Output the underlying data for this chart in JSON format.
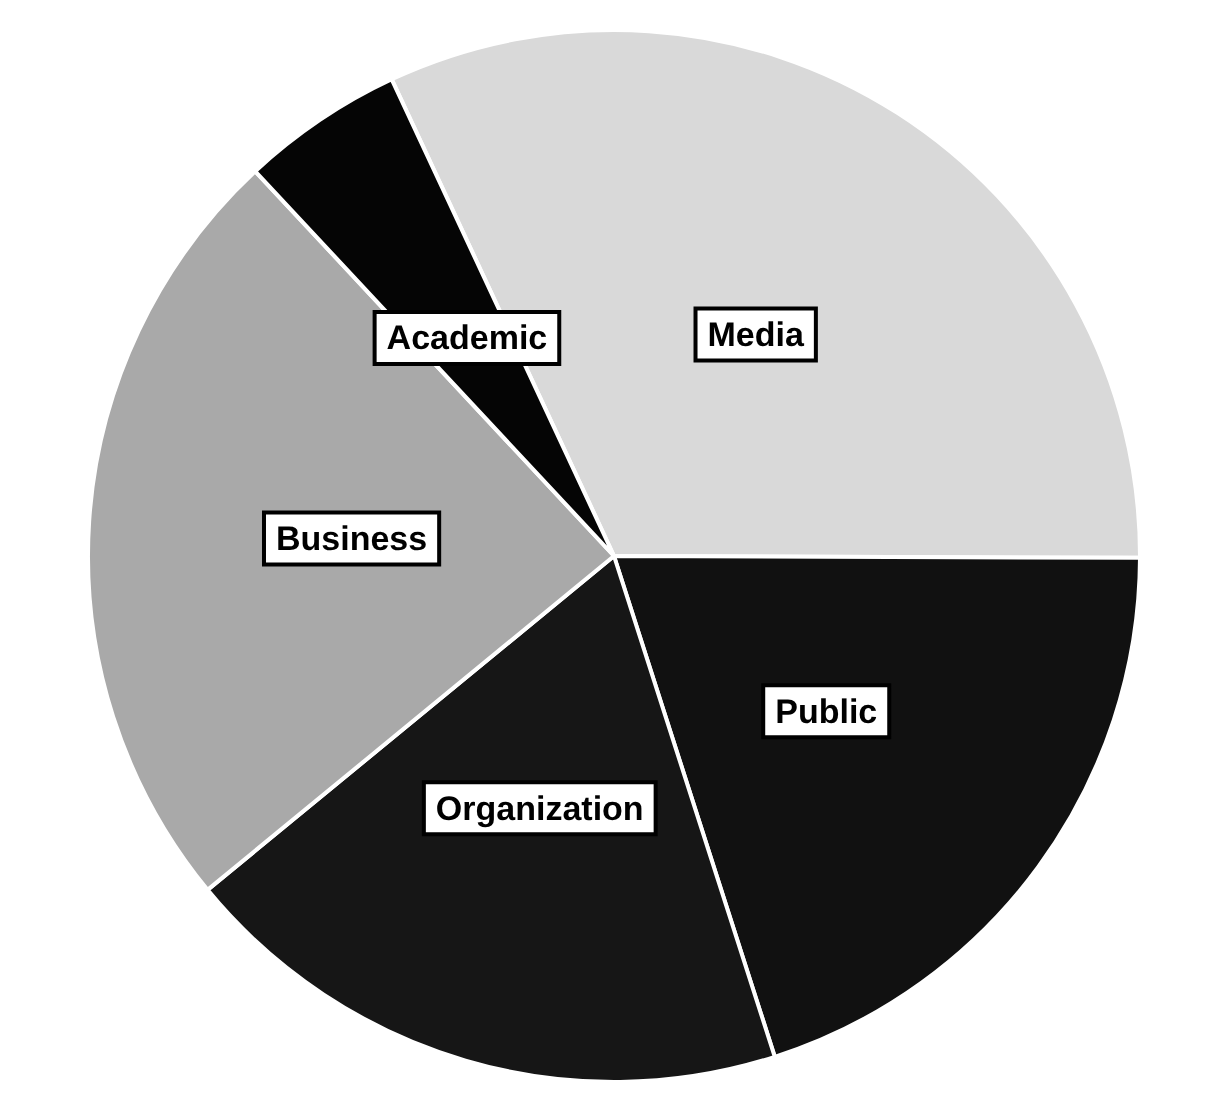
{
  "chart_data": {
    "type": "pie",
    "categories": [
      "Media",
      "Public",
      "Organization",
      "Business",
      "Academic"
    ],
    "values": [
      32,
      20,
      19,
      24,
      5
    ],
    "colors": [
      "#d9d9d9",
      "#111111",
      "#161616",
      "#a9a9a9",
      "#050505"
    ],
    "legend": false
  }
}
